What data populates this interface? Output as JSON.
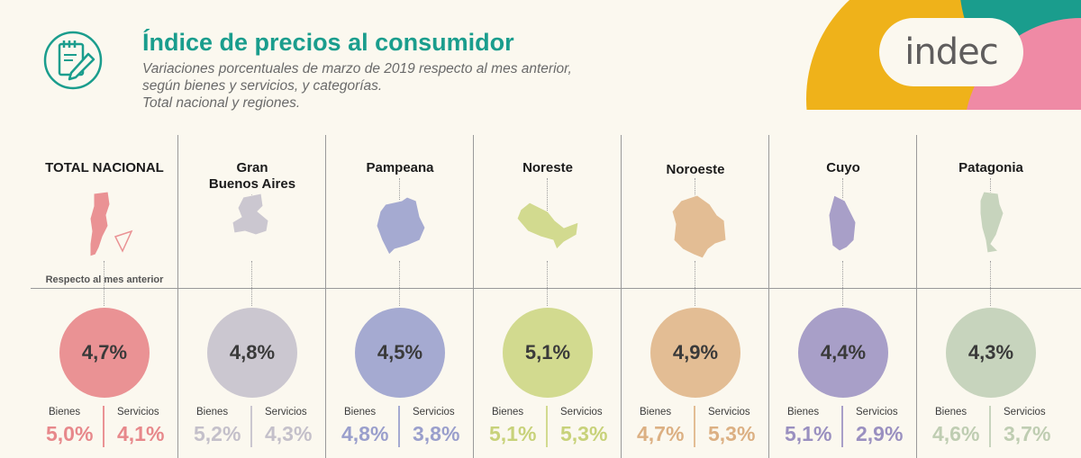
{
  "header": {
    "title": "Índice de precios al consumidor",
    "subtitle_lines": [
      "Variaciones porcentuales de marzo de 2019 respecto al mes anterior,",
      "según bienes y servicios, y categorías.",
      "Total nacional y regiones."
    ],
    "icon": "notepad-pencil-icon"
  },
  "logo": {
    "text": "indec"
  },
  "colors": {
    "title": "#1a9d8d",
    "logo_yellow": "#efb21a",
    "logo_teal": "#1a9d8d",
    "logo_pink": "#ef8aa5"
  },
  "reference_label": "Respecto al mes anterior",
  "labels": {
    "bienes": "Bienes",
    "servicios": "Servicios"
  },
  "chart_data": {
    "type": "bubble-panel",
    "unit": "%",
    "regions": [
      {
        "name_lines": [
          "TOTAL NACIONAL"
        ],
        "total": "4,7%",
        "bienes": "5,0%",
        "servicios": "4,1%",
        "color": "#ea9294",
        "text_color": "#e7888b"
      },
      {
        "name_lines": [
          "Gran",
          "Buenos Aires"
        ],
        "total": "4,8%",
        "bienes": "5,2%",
        "servicios": "4,3%",
        "color": "#cbc7d0",
        "text_color": "#c4c0ca"
      },
      {
        "name_lines": [
          "Pampeana"
        ],
        "total": "4,5%",
        "bienes": "4,8%",
        "servicios": "3,8%",
        "color": "#a5aad1",
        "text_color": "#9a9fcc"
      },
      {
        "name_lines": [
          "Noreste"
        ],
        "total": "5,1%",
        "bienes": "5,1%",
        "servicios": "5,3%",
        "color": "#d2da8f",
        "text_color": "#c8d27a"
      },
      {
        "name_lines": [
          "Noroeste"
        ],
        "total": "4,9%",
        "bienes": "4,7%",
        "servicios": "5,3%",
        "color": "#e3bd94",
        "text_color": "#dcb083"
      },
      {
        "name_lines": [
          "Cuyo"
        ],
        "total": "4,4%",
        "bienes": "5,1%",
        "servicios": "2,9%",
        "color": "#a89fc8",
        "text_color": "#9a90c0"
      },
      {
        "name_lines": [
          "Patagonia"
        ],
        "total": "4,3%",
        "bienes": "4,6%",
        "servicios": "3,7%",
        "color": "#c7d4bd",
        "text_color": "#bfcdb2"
      }
    ]
  }
}
